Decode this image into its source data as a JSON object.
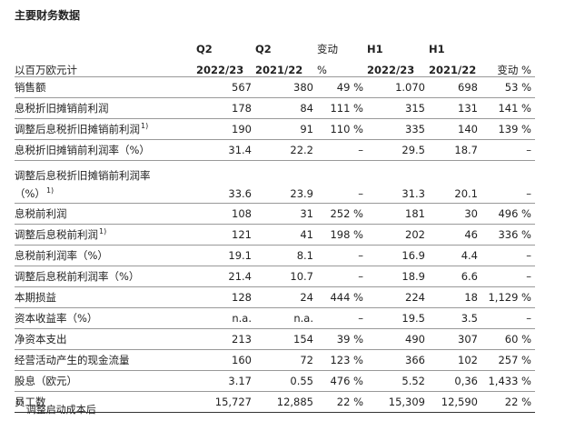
{
  "title": "主要财务数据",
  "header": {
    "row1": [
      "",
      "Q2",
      "Q2",
      "变动",
      "H1",
      "H1",
      ""
    ],
    "row2": [
      "以百万欧元计",
      "2022/23",
      "2021/22",
      "%",
      "2022/23",
      "2021/22",
      "变动 %"
    ]
  },
  "rows": [
    {
      "label": "销售额",
      "sup": "",
      "values": [
        "567",
        "380",
        "49 %",
        "1.070",
        "698",
        "53 %"
      ]
    },
    {
      "label": "息税折旧摊销前利润",
      "sup": "",
      "values": [
        "178",
        "84",
        "111 %",
        "315",
        "131",
        "141 %"
      ]
    },
    {
      "label": "调整后息税折旧摊销前利润",
      "sup": "1)",
      "values": [
        "190",
        "91",
        "110 %",
        "335",
        "140",
        "139 %"
      ]
    },
    {
      "label": "息税折旧摊销前利润率（%）",
      "sup": "",
      "values": [
        "31.4",
        "22.2",
        "–",
        "29.5",
        "18.7",
        "–"
      ]
    },
    {
      "label": "调整后息税折旧摊销前利润率",
      "label2": "（%）",
      "sup": "1)",
      "values": [
        "33.6",
        "23.9",
        "–",
        "31.3",
        "20.1",
        "–"
      ]
    },
    {
      "label": "息税前利润",
      "sup": "",
      "values": [
        "108",
        "31",
        "252 %",
        "181",
        "30",
        "496 %"
      ]
    },
    {
      "label": "调整后息税前利润",
      "sup": "1)",
      "values": [
        "121",
        "41",
        "198 %",
        "202",
        "46",
        "336 %"
      ]
    },
    {
      "label": "息税前利润率（%）",
      "sup": "",
      "values": [
        "19.1",
        "8.1",
        "–",
        "16.9",
        "4.4",
        "–"
      ]
    },
    {
      "label": "调整后息税前利润率（%）",
      "sup": "",
      "values": [
        "21.4",
        "10.7",
        "–",
        "18.9",
        "6.6",
        "–"
      ]
    },
    {
      "label": "本期损益",
      "sup": "",
      "values": [
        "128",
        "24",
        "444 %",
        "224",
        "18",
        "1,129 %"
      ]
    },
    {
      "label": "资本收益率（%）",
      "sup": "",
      "values": [
        "n.a.",
        "n.a.",
        "–",
        "19.5",
        "3.5",
        "–"
      ]
    },
    {
      "label": "净资本支出",
      "sup": "",
      "values": [
        "213",
        "154",
        "39 %",
        "490",
        "307",
        "60 %"
      ]
    },
    {
      "label": "经营活动产生的现金流量",
      "sup": "",
      "values": [
        "160",
        "72",
        "123 %",
        "366",
        "102",
        "257 %"
      ]
    },
    {
      "label": "股息（欧元）",
      "sup": "",
      "values": [
        "3.17",
        "0.55",
        "476 %",
        "5.52",
        "0,36",
        "1,433 %"
      ]
    },
    {
      "label": "员工数",
      "sup": "",
      "values": [
        "15,727",
        "12,885",
        "22 %",
        "15,309",
        "12,590",
        "22 %"
      ]
    }
  ],
  "footnote": {
    "sup": "1)",
    "text": "调整启动成本后"
  }
}
